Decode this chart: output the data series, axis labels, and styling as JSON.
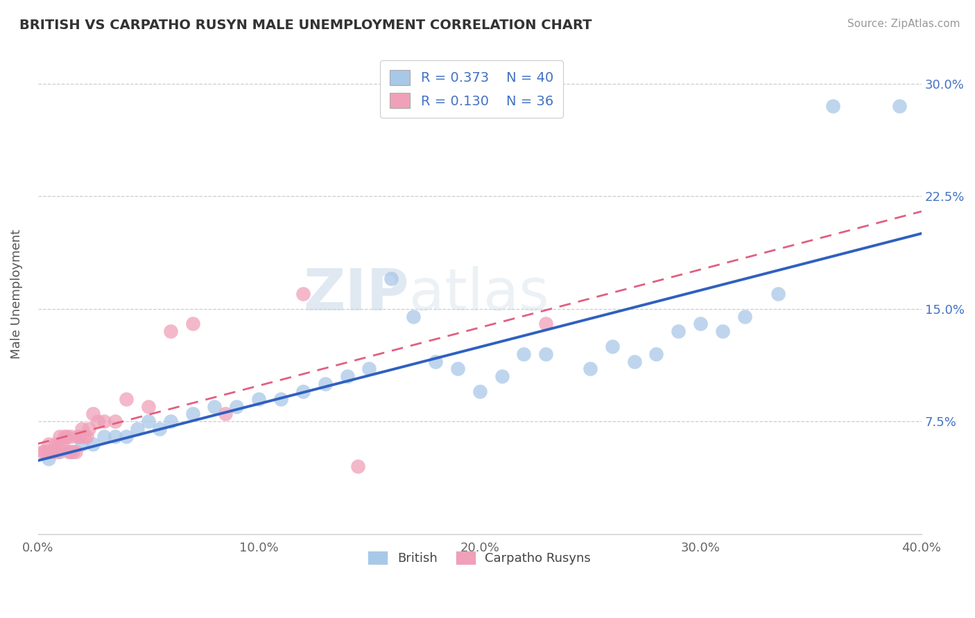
{
  "title": "BRITISH VS CARPATHO RUSYN MALE UNEMPLOYMENT CORRELATION CHART",
  "source": "Source: ZipAtlas.com",
  "ylabel": "Male Unemployment",
  "x_tick_labels": [
    "0.0%",
    "10.0%",
    "20.0%",
    "30.0%",
    "40.0%"
  ],
  "x_tick_vals": [
    0.0,
    10.0,
    20.0,
    30.0,
    40.0
  ],
  "y_tick_labels_right": [
    "7.5%",
    "15.0%",
    "22.5%",
    "30.0%"
  ],
  "y_tick_vals": [
    7.5,
    15.0,
    22.5,
    30.0
  ],
  "xlim": [
    0,
    40
  ],
  "ylim": [
    0,
    32
  ],
  "legend_R1": "R = 0.373",
  "legend_N1": "N = 40",
  "legend_R2": "R = 0.130",
  "legend_N2": "N = 36",
  "british_color": "#A8C8E8",
  "carpatho_color": "#F0A0B8",
  "british_line_color": "#3060C0",
  "carpatho_line_color": "#E06080",
  "watermark_zip": "ZIP",
  "watermark_atlas": "atlas",
  "british_x": [
    0.5,
    1.0,
    1.5,
    2.0,
    2.5,
    3.0,
    3.5,
    4.0,
    4.5,
    5.0,
    5.5,
    6.0,
    7.0,
    8.0,
    9.0,
    10.0,
    11.0,
    12.0,
    13.0,
    14.0,
    15.0,
    16.0,
    17.0,
    18.0,
    19.0,
    20.0,
    21.0,
    22.0,
    23.0,
    25.0,
    26.0,
    27.0,
    28.0,
    29.0,
    30.0,
    31.0,
    32.0,
    33.5,
    36.0,
    39.0
  ],
  "british_y": [
    5.0,
    5.5,
    5.5,
    6.0,
    6.0,
    6.5,
    6.5,
    6.5,
    7.0,
    7.5,
    7.0,
    7.5,
    8.0,
    8.5,
    8.5,
    9.0,
    9.0,
    9.5,
    10.0,
    10.5,
    11.0,
    17.0,
    14.5,
    11.5,
    11.0,
    9.5,
    10.5,
    12.0,
    12.0,
    11.0,
    12.5,
    11.5,
    12.0,
    13.5,
    14.0,
    13.5,
    14.5,
    16.0,
    28.5,
    28.5
  ],
  "carpatho_x": [
    0.2,
    0.3,
    0.4,
    0.5,
    0.5,
    0.6,
    0.7,
    0.8,
    0.9,
    1.0,
    1.0,
    1.1,
    1.2,
    1.3,
    1.4,
    1.5,
    1.6,
    1.7,
    1.8,
    1.9,
    2.0,
    2.1,
    2.2,
    2.3,
    2.5,
    2.7,
    3.0,
    3.5,
    4.0,
    5.0,
    6.0,
    7.0,
    8.5,
    12.0,
    14.5,
    23.0
  ],
  "carpatho_y": [
    5.5,
    5.5,
    5.5,
    5.5,
    6.0,
    5.5,
    5.5,
    6.0,
    5.5,
    6.0,
    6.5,
    6.0,
    6.5,
    6.5,
    5.5,
    6.5,
    5.5,
    5.5,
    6.5,
    6.5,
    7.0,
    6.5,
    6.5,
    7.0,
    8.0,
    7.5,
    7.5,
    7.5,
    9.0,
    8.5,
    13.5,
    14.0,
    8.0,
    16.0,
    4.5,
    14.0
  ]
}
